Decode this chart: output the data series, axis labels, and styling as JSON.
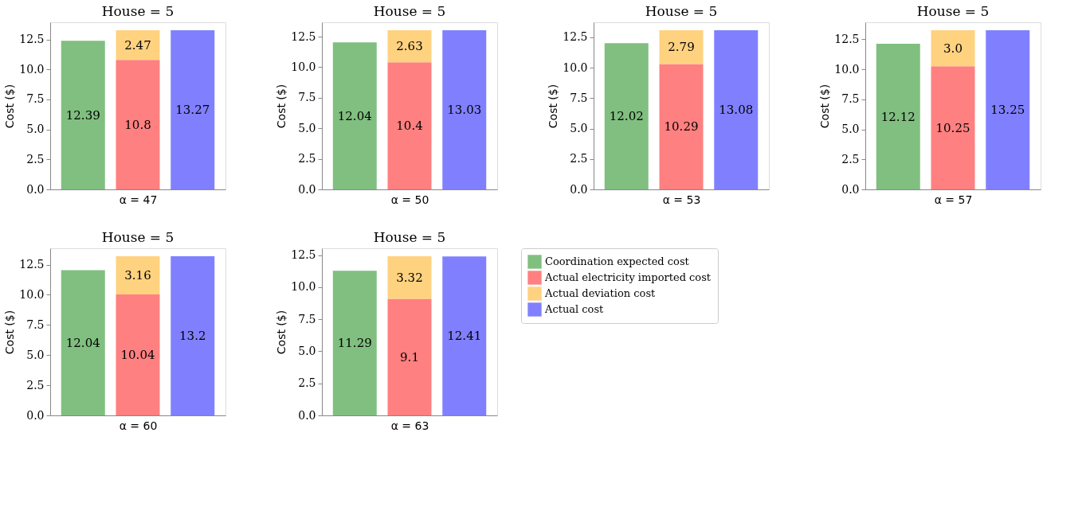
{
  "chart_data": [
    {
      "type": "bar",
      "title": "House = 5",
      "xlabel": "α = 47",
      "ylabel": "Cost ($)",
      "categories": [
        null,
        null,
        null
      ],
      "stacked": true,
      "tick_labels": "y",
      "grid": false,
      "legend": false,
      "ylim": [
        0,
        13.93
      ],
      "yticks": [
        {
          "value": 0,
          "label": "0.0"
        },
        2.5,
        {
          "value": 5,
          "label": "5.0"
        },
        7.5,
        {
          "value": 10,
          "label": "10.0"
        },
        12.5
      ],
      "series": [
        {
          "color": "#80bf80",
          "values": [
            12.39,
            null,
            null
          ],
          "value_labels": [
            "12.39",
            null,
            null
          ]
        },
        {
          "color": "#ff8080",
          "values": [
            null,
            10.8,
            null
          ],
          "value_labels": [
            null,
            "10.8",
            null
          ]
        },
        {
          "color": "#ffd280",
          "values": [
            null,
            2.47,
            null
          ],
          "value_labels": [
            null,
            "2.47",
            null
          ]
        },
        {
          "color": "#8080ff",
          "values": [
            null,
            null,
            13.27
          ],
          "value_labels": [
            null,
            null,
            "13.27"
          ]
        }
      ]
    },
    {
      "type": "bar",
      "title": "House = 5",
      "xlabel": "α = 50",
      "ylabel": "Cost ($)",
      "categories": [
        null,
        null,
        null
      ],
      "stacked": true,
      "tick_labels": "y",
      "grid": false,
      "legend": false,
      "ylim": [
        0,
        13.68
      ],
      "yticks": [
        {
          "value": 0,
          "label": "0.0"
        },
        2.5,
        {
          "value": 5,
          "label": "5.0"
        },
        7.5,
        {
          "value": 10,
          "label": "10.0"
        },
        12.5
      ],
      "series": [
        {
          "color": "#80bf80",
          "values": [
            12.04,
            null,
            null
          ],
          "value_labels": [
            "12.04",
            null,
            null
          ]
        },
        {
          "color": "#ff8080",
          "values": [
            null,
            10.4,
            null
          ],
          "value_labels": [
            null,
            "10.4",
            null
          ]
        },
        {
          "color": "#ffd280",
          "values": [
            null,
            2.63,
            null
          ],
          "value_labels": [
            null,
            "2.63",
            null
          ]
        },
        {
          "color": "#8080ff",
          "values": [
            null,
            null,
            13.03
          ],
          "value_labels": [
            null,
            null,
            "13.03"
          ]
        }
      ]
    },
    {
      "type": "bar",
      "title": "House = 5",
      "xlabel": "α = 53",
      "ylabel": "Cost ($)",
      "categories": [
        null,
        null,
        null
      ],
      "stacked": true,
      "tick_labels": "y",
      "grid": false,
      "legend": false,
      "ylim": [
        0,
        13.73
      ],
      "yticks": [
        {
          "value": 0,
          "label": "0.0"
        },
        2.5,
        {
          "value": 5,
          "label": "5.0"
        },
        7.5,
        {
          "value": 10,
          "label": "10.0"
        },
        12.5
      ],
      "series": [
        {
          "color": "#80bf80",
          "values": [
            12.02,
            null,
            null
          ],
          "value_labels": [
            "12.02",
            null,
            null
          ]
        },
        {
          "color": "#ff8080",
          "values": [
            null,
            10.29,
            null
          ],
          "value_labels": [
            null,
            "10.29",
            null
          ]
        },
        {
          "color": "#ffd280",
          "values": [
            null,
            2.79,
            null
          ],
          "value_labels": [
            null,
            "2.79",
            null
          ]
        },
        {
          "color": "#8080ff",
          "values": [
            null,
            null,
            13.08
          ],
          "value_labels": [
            null,
            null,
            "13.08"
          ]
        }
      ]
    },
    {
      "type": "bar",
      "title": "House = 5",
      "xlabel": "α = 57",
      "ylabel": "Cost ($)",
      "categories": [
        null,
        null,
        null
      ],
      "stacked": true,
      "tick_labels": "y",
      "grid": false,
      "legend": false,
      "ylim": [
        0,
        13.91
      ],
      "yticks": [
        {
          "value": 0,
          "label": "0.0"
        },
        2.5,
        {
          "value": 5,
          "label": "5.0"
        },
        7.5,
        {
          "value": 10,
          "label": "10.0"
        },
        12.5
      ],
      "series": [
        {
          "color": "#80bf80",
          "values": [
            12.12,
            null,
            null
          ],
          "value_labels": [
            "12.12",
            null,
            null
          ]
        },
        {
          "color": "#ff8080",
          "values": [
            null,
            10.25,
            null
          ],
          "value_labels": [
            null,
            "10.25",
            null
          ]
        },
        {
          "color": "#ffd280",
          "values": [
            null,
            3.0,
            null
          ],
          "value_labels": [
            null,
            "3.0",
            null
          ]
        },
        {
          "color": "#8080ff",
          "values": [
            null,
            null,
            13.25
          ],
          "value_labels": [
            null,
            null,
            "13.25"
          ]
        }
      ]
    },
    {
      "type": "bar",
      "title": "House = 5",
      "xlabel": "α = 60",
      "ylabel": "Cost ($)",
      "categories": [
        null,
        null,
        null
      ],
      "stacked": true,
      "tick_labels": "y",
      "grid": false,
      "legend": false,
      "ylim": [
        0,
        13.86
      ],
      "yticks": [
        {
          "value": 0,
          "label": "0.0"
        },
        2.5,
        {
          "value": 5,
          "label": "5.0"
        },
        7.5,
        {
          "value": 10,
          "label": "10.0"
        },
        12.5
      ],
      "series": [
        {
          "color": "#80bf80",
          "values": [
            12.04,
            null,
            null
          ],
          "value_labels": [
            "12.04",
            null,
            null
          ]
        },
        {
          "color": "#ff8080",
          "values": [
            null,
            10.04,
            null
          ],
          "value_labels": [
            null,
            "10.04",
            null
          ]
        },
        {
          "color": "#ffd280",
          "values": [
            null,
            3.16,
            null
          ],
          "value_labels": [
            null,
            "3.16",
            null
          ]
        },
        {
          "color": "#8080ff",
          "values": [
            null,
            null,
            13.2
          ],
          "value_labels": [
            null,
            null,
            "13.2"
          ]
        }
      ]
    },
    {
      "type": "bar",
      "title": "House = 5",
      "xlabel": "α = 63",
      "ylabel": "Cost ($)",
      "categories": [
        null,
        null,
        null
      ],
      "stacked": true,
      "tick_labels": "y",
      "grid": false,
      "legend": "right",
      "ylim": [
        0,
        13.04
      ],
      "yticks": [
        {
          "value": 0,
          "label": "0.0"
        },
        2.5,
        {
          "value": 5,
          "label": "5.0"
        },
        7.5,
        {
          "value": 10,
          "label": "10.0"
        },
        12.5
      ],
      "series": [
        {
          "name": "Coordination expected cost",
          "color": "#80bf80",
          "values": [
            11.29,
            null,
            null
          ],
          "value_labels": [
            "11.29",
            null,
            null
          ]
        },
        {
          "name": "Actual electricity imported cost",
          "color": "#ff8080",
          "values": [
            null,
            9.1,
            null
          ],
          "value_labels": [
            null,
            "9.1",
            null
          ]
        },
        {
          "name": "Actual deviation cost",
          "color": "#ffd280",
          "values": [
            null,
            3.32,
            null
          ],
          "value_labels": [
            null,
            "3.32",
            null
          ]
        },
        {
          "name": "Actual cost",
          "color": "#8080ff",
          "values": [
            null,
            null,
            12.41
          ],
          "value_labels": [
            null,
            null,
            "12.41"
          ]
        }
      ]
    }
  ]
}
